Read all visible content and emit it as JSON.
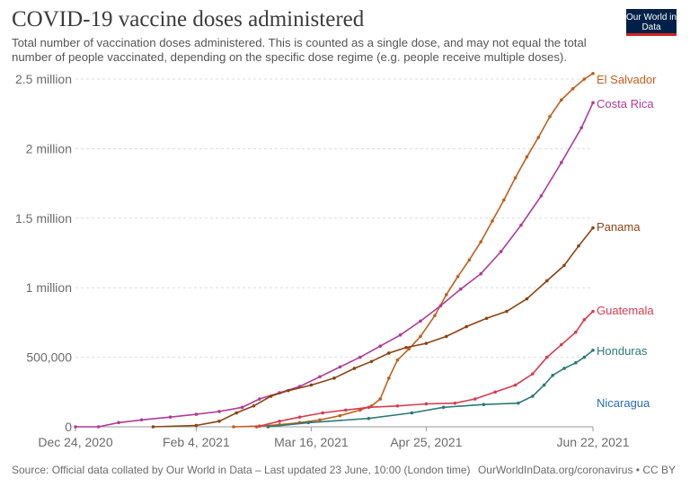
{
  "header": {
    "title": "COVID-19 vaccine doses administered",
    "subtitle": "Total number of vaccination doses administered. This is counted as a single dose, and may not equal the total number of people vaccinated, depending on the specific dose regime (e.g. people receive multiple doses).",
    "logo": "Our World in Data"
  },
  "footer": {
    "source": "Source: Official data collated by Our World in Data – Last updated 23 June, 10:00 (London time)",
    "credit": "OurWorldInData.org/coronavirus • CC BY"
  },
  "chart_data": {
    "type": "line",
    "title": "COVID-19 vaccine doses administered",
    "xlabel": "",
    "ylabel": "",
    "x_ticks": [
      "Dec 24, 2020",
      "Feb 4, 2021",
      "Mar 16, 2021",
      "Apr 25, 2021",
      "Jun 22, 2021"
    ],
    "y_ticks": [
      {
        "value": 0,
        "label": "0"
      },
      {
        "value": 500000,
        "label": "500,000"
      },
      {
        "value": 1000000,
        "label": "1 million"
      },
      {
        "value": 1500000,
        "label": "1.5 million"
      },
      {
        "value": 2000000,
        "label": "2 million"
      },
      {
        "value": 2500000,
        "label": "2.5 million"
      }
    ],
    "x_range": [
      "2020-12-24",
      "2021-06-22"
    ],
    "ylim": [
      0,
      2500000
    ],
    "grid": true,
    "legend": "right-end labels",
    "series": [
      {
        "name": "El Salvador",
        "color": "#c15e1c",
        "points": [
          [
            "2021-02-17",
            0
          ],
          [
            "2021-02-26",
            5000
          ],
          [
            "2021-03-05",
            15000
          ],
          [
            "2021-03-12",
            30000
          ],
          [
            "2021-03-19",
            50000
          ],
          [
            "2021-03-26",
            80000
          ],
          [
            "2021-04-02",
            120000
          ],
          [
            "2021-04-06",
            150000
          ],
          [
            "2021-04-09",
            200000
          ],
          [
            "2021-04-12",
            350000
          ],
          [
            "2021-04-15",
            480000
          ],
          [
            "2021-04-19",
            560000
          ],
          [
            "2021-04-23",
            650000
          ],
          [
            "2021-04-28",
            800000
          ],
          [
            "2021-05-02",
            950000
          ],
          [
            "2021-05-06",
            1080000
          ],
          [
            "2021-05-10",
            1200000
          ],
          [
            "2021-05-14",
            1330000
          ],
          [
            "2021-05-18",
            1480000
          ],
          [
            "2021-05-22",
            1630000
          ],
          [
            "2021-05-26",
            1790000
          ],
          [
            "2021-05-30",
            1940000
          ],
          [
            "2021-06-03",
            2080000
          ],
          [
            "2021-06-07",
            2230000
          ],
          [
            "2021-06-11",
            2350000
          ],
          [
            "2021-06-15",
            2430000
          ],
          [
            "2021-06-19",
            2500000
          ],
          [
            "2021-06-22",
            2540000
          ]
        ]
      },
      {
        "name": "Costa Rica",
        "color": "#b13a96",
        "points": [
          [
            "2020-12-24",
            0
          ],
          [
            "2021-01-01",
            0
          ],
          [
            "2021-01-08",
            30000
          ],
          [
            "2021-01-16",
            50000
          ],
          [
            "2021-01-26",
            70000
          ],
          [
            "2021-02-04",
            90000
          ],
          [
            "2021-02-12",
            110000
          ],
          [
            "2021-02-20",
            140000
          ],
          [
            "2021-02-26",
            200000
          ],
          [
            "2021-03-05",
            245000
          ],
          [
            "2021-03-12",
            290000
          ],
          [
            "2021-03-19",
            360000
          ],
          [
            "2021-03-26",
            430000
          ],
          [
            "2021-04-02",
            500000
          ],
          [
            "2021-04-09",
            580000
          ],
          [
            "2021-04-16",
            660000
          ],
          [
            "2021-04-23",
            760000
          ],
          [
            "2021-04-30",
            870000
          ],
          [
            "2021-05-07",
            990000
          ],
          [
            "2021-05-14",
            1100000
          ],
          [
            "2021-05-21",
            1260000
          ],
          [
            "2021-05-28",
            1450000
          ],
          [
            "2021-06-04",
            1660000
          ],
          [
            "2021-06-11",
            1900000
          ],
          [
            "2021-06-18",
            2150000
          ],
          [
            "2021-06-22",
            2330000
          ]
        ]
      },
      {
        "name": "Panama",
        "color": "#8a4413",
        "points": [
          [
            "2021-01-20",
            0
          ],
          [
            "2021-02-04",
            10000
          ],
          [
            "2021-02-12",
            40000
          ],
          [
            "2021-02-18",
            100000
          ],
          [
            "2021-02-24",
            150000
          ],
          [
            "2021-03-02",
            220000
          ],
          [
            "2021-03-08",
            260000
          ],
          [
            "2021-03-16",
            300000
          ],
          [
            "2021-03-24",
            350000
          ],
          [
            "2021-03-31",
            420000
          ],
          [
            "2021-04-06",
            470000
          ],
          [
            "2021-04-12",
            530000
          ],
          [
            "2021-04-18",
            570000
          ],
          [
            "2021-04-25",
            600000
          ],
          [
            "2021-05-02",
            650000
          ],
          [
            "2021-05-09",
            720000
          ],
          [
            "2021-05-16",
            780000
          ],
          [
            "2021-05-23",
            830000
          ],
          [
            "2021-05-30",
            920000
          ],
          [
            "2021-06-06",
            1050000
          ],
          [
            "2021-06-12",
            1160000
          ],
          [
            "2021-06-17",
            1300000
          ],
          [
            "2021-06-22",
            1430000
          ]
        ]
      },
      {
        "name": "Guatemala",
        "color": "#d73c50",
        "points": [
          [
            "2021-02-25",
            0
          ],
          [
            "2021-03-05",
            40000
          ],
          [
            "2021-03-12",
            70000
          ],
          [
            "2021-03-20",
            100000
          ],
          [
            "2021-03-28",
            120000
          ],
          [
            "2021-04-05",
            140000
          ],
          [
            "2021-04-15",
            150000
          ],
          [
            "2021-04-25",
            165000
          ],
          [
            "2021-05-05",
            170000
          ],
          [
            "2021-05-12",
            200000
          ],
          [
            "2021-05-19",
            250000
          ],
          [
            "2021-05-26",
            300000
          ],
          [
            "2021-06-01",
            380000
          ],
          [
            "2021-06-06",
            500000
          ],
          [
            "2021-06-11",
            590000
          ],
          [
            "2021-06-16",
            680000
          ],
          [
            "2021-06-19",
            770000
          ],
          [
            "2021-06-22",
            830000
          ]
        ]
      },
      {
        "name": "Honduras",
        "color": "#2c7a75",
        "points": [
          [
            "2021-03-01",
            0
          ],
          [
            "2021-03-15",
            30000
          ],
          [
            "2021-04-05",
            60000
          ],
          [
            "2021-04-20",
            100000
          ],
          [
            "2021-05-01",
            140000
          ],
          [
            "2021-05-15",
            160000
          ],
          [
            "2021-05-27",
            170000
          ],
          [
            "2021-06-01",
            220000
          ],
          [
            "2021-06-05",
            300000
          ],
          [
            "2021-06-08",
            370000
          ],
          [
            "2021-06-12",
            420000
          ],
          [
            "2021-06-16",
            460000
          ],
          [
            "2021-06-19",
            500000
          ],
          [
            "2021-06-22",
            550000
          ]
        ]
      },
      {
        "name": "Nicaragua",
        "color": "#286bbb",
        "points": []
      }
    ]
  }
}
